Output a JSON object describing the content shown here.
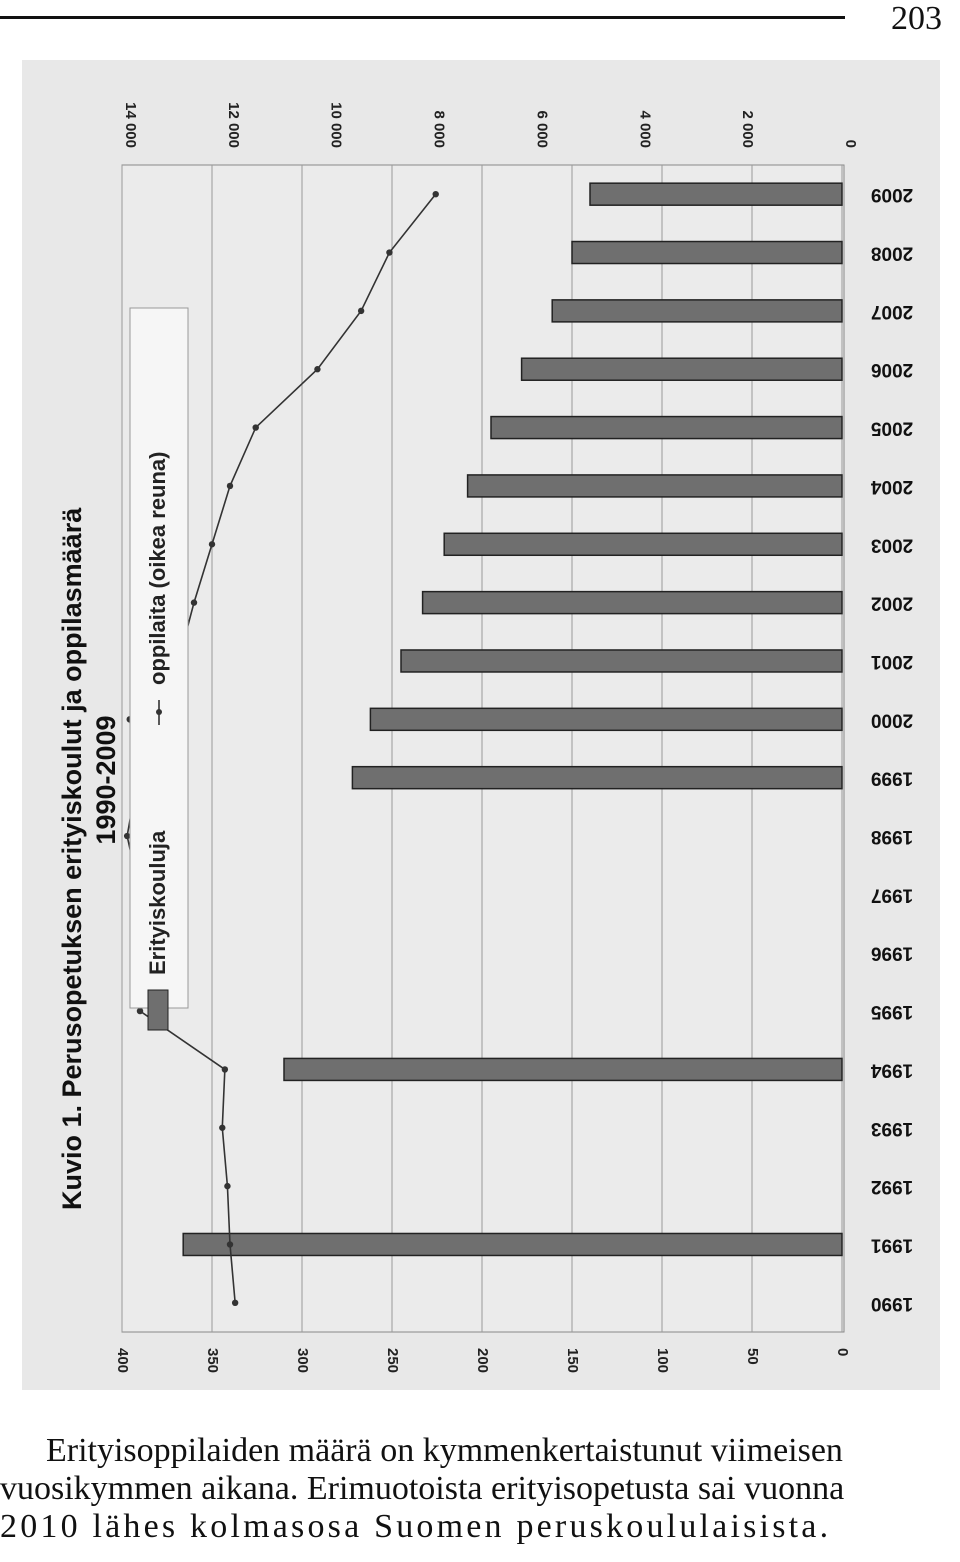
{
  "page": {
    "number": "203"
  },
  "figure": {
    "title": "Kuvio 1. Perusopetuksen erityiskoulut ja oppilasmäärä",
    "subtitle": "1990-2009",
    "legend": {
      "bar_label": "Erityiskouluja",
      "line_label": "oppilaita (oikea reuna)"
    }
  },
  "chart_data": {
    "type": "bar",
    "orientation": "rotated 90° clockwise (years read bottom-to-top along the right edge)",
    "categories": [
      "1990",
      "1991",
      "1992",
      "1993",
      "1994",
      "1995",
      "1996",
      "1997",
      "1998",
      "1999",
      "2000",
      "2001",
      "2002",
      "2003",
      "2004",
      "2005",
      "2006",
      "2007",
      "2008",
      "2009"
    ],
    "series": [
      {
        "name": "Erityiskouluja",
        "kind": "bar",
        "axis": "left",
        "values": [
          null,
          366,
          null,
          null,
          310,
          null,
          null,
          null,
          null,
          272,
          262,
          245,
          233,
          221,
          208,
          195,
          178,
          161,
          150,
          140
        ]
      },
      {
        "name": "oppilaita (oikea reuna)",
        "kind": "line",
        "axis": "right",
        "values": [
          11800,
          11900,
          11950,
          12050,
          12000,
          13650,
          12950,
          13650,
          13900,
          13700,
          13850,
          12900,
          12600,
          12250,
          11900,
          11400,
          10200,
          9350,
          8800,
          7900
        ]
      }
    ],
    "left_axis": {
      "ticks": [
        "0",
        "50",
        "100",
        "150",
        "200",
        "250",
        "300",
        "350",
        "400"
      ],
      "range": [
        0,
        400
      ]
    },
    "right_axis": {
      "ticks": [
        "0",
        "2 000",
        "4 000",
        "6 000",
        "8 000",
        "10 000",
        "12 000",
        "14 000"
      ],
      "range": [
        0,
        14000
      ]
    },
    "grid": true,
    "legend_position": "top",
    "colors": {
      "bar": "#6f6f6f",
      "bar_edge": "#222222",
      "line": "#333333",
      "plot_bg": "#ebebeb",
      "scan_bg": "#e8e8e8"
    }
  },
  "caption": {
    "line1": "Erityisoppilaiden määrä on kymmenkertaistunut viimeisen",
    "line2": "vuosikymmen aikana. Erimuotoista erityisopetusta sai vuonna",
    "line3": "2010 lähes kolmasosa Suomen peruskoululaisista."
  }
}
